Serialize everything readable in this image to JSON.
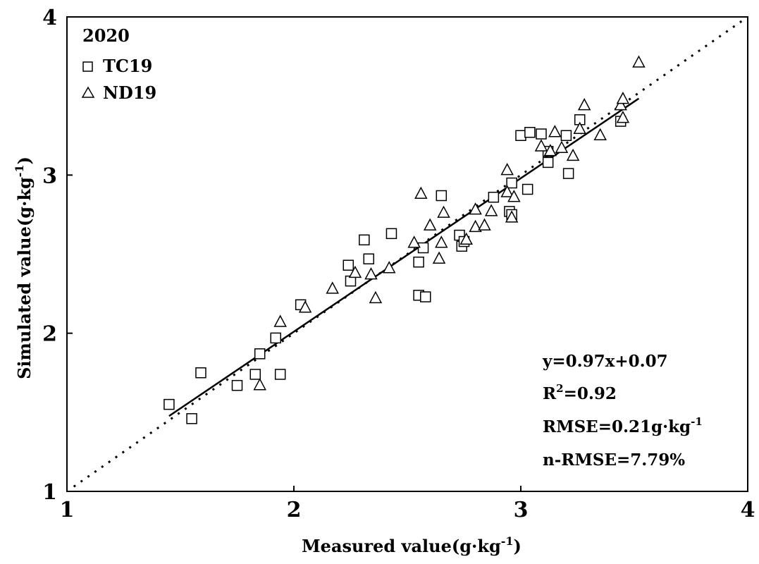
{
  "chart_data": {
    "type": "scatter",
    "title": "",
    "xlabel": "Measured value(g·kg",
    "xlabel_sup": "-1",
    "xlabel_end": ")",
    "ylabel": "Simulated value(g·kg",
    "ylabel_sup": "-1",
    "ylabel_end": ")",
    "xlim": [
      1,
      4
    ],
    "ylim": [
      1,
      4
    ],
    "x_ticks": [
      "1",
      "2",
      "3",
      "4"
    ],
    "y_ticks": [
      "1",
      "2",
      "3",
      "4"
    ],
    "grid": false,
    "legend": {
      "placement": "top-left",
      "title": "2020"
    },
    "series": [
      {
        "name": "TC19",
        "marker": "square",
        "points": [
          [
            1.45,
            1.55
          ],
          [
            1.55,
            1.46
          ],
          [
            1.59,
            1.75
          ],
          [
            1.75,
            1.67
          ],
          [
            1.83,
            1.74
          ],
          [
            1.85,
            1.87
          ],
          [
            1.94,
            1.74
          ],
          [
            1.92,
            1.97
          ],
          [
            2.03,
            2.18
          ],
          [
            2.25,
            2.33
          ],
          [
            2.24,
            2.43
          ],
          [
            2.31,
            2.59
          ],
          [
            2.33,
            2.47
          ],
          [
            2.43,
            2.63
          ],
          [
            2.55,
            2.45
          ],
          [
            2.57,
            2.54
          ],
          [
            2.55,
            2.24
          ],
          [
            2.58,
            2.23
          ],
          [
            2.65,
            2.87
          ],
          [
            2.73,
            2.62
          ],
          [
            2.74,
            2.55
          ],
          [
            2.75,
            2.58
          ],
          [
            2.88,
            2.86
          ],
          [
            2.95,
            2.77
          ],
          [
            2.96,
            2.75
          ],
          [
            2.96,
            2.95
          ],
          [
            3.03,
            2.91
          ],
          [
            3.0,
            3.25
          ],
          [
            3.04,
            3.27
          ],
          [
            3.09,
            3.26
          ],
          [
            3.12,
            3.15
          ],
          [
            3.12,
            3.08
          ],
          [
            3.21,
            3.01
          ],
          [
            3.2,
            3.25
          ],
          [
            3.26,
            3.35
          ],
          [
            3.44,
            3.34
          ]
        ]
      },
      {
        "name": "ND19",
        "marker": "triangle",
        "points": [
          [
            1.85,
            1.67
          ],
          [
            1.94,
            2.07
          ],
          [
            2.05,
            2.16
          ],
          [
            2.17,
            2.28
          ],
          [
            2.27,
            2.38
          ],
          [
            2.34,
            2.37
          ],
          [
            2.36,
            2.22
          ],
          [
            2.42,
            2.41
          ],
          [
            2.53,
            2.57
          ],
          [
            2.56,
            2.88
          ],
          [
            2.6,
            2.68
          ],
          [
            2.64,
            2.47
          ],
          [
            2.65,
            2.57
          ],
          [
            2.66,
            2.76
          ],
          [
            2.76,
            2.59
          ],
          [
            2.8,
            2.67
          ],
          [
            2.8,
            2.78
          ],
          [
            2.84,
            2.68
          ],
          [
            2.87,
            2.77
          ],
          [
            2.94,
            3.03
          ],
          [
            2.94,
            2.89
          ],
          [
            2.96,
            2.73
          ],
          [
            2.97,
            2.86
          ],
          [
            3.09,
            3.18
          ],
          [
            3.13,
            3.15
          ],
          [
            3.15,
            3.27
          ],
          [
            3.18,
            3.17
          ],
          [
            3.23,
            3.12
          ],
          [
            3.26,
            3.29
          ],
          [
            3.28,
            3.44
          ],
          [
            3.35,
            3.25
          ],
          [
            3.44,
            3.44
          ],
          [
            3.45,
            3.48
          ],
          [
            3.45,
            3.36
          ],
          [
            3.52,
            3.71
          ]
        ]
      }
    ],
    "regression": {
      "slope": 0.97,
      "intercept": 0.07,
      "x_range": [
        1.45,
        3.52
      ],
      "style": "solid"
    },
    "reference_line": {
      "slope": 1,
      "intercept": 0,
      "x_range": [
        1.03,
        4
      ],
      "style": "dotted"
    },
    "annotations": {
      "equation": "y=0.97x+0.07",
      "r2_prefix": "R",
      "r2_sup": "2",
      "r2_value": "=0.92",
      "rmse_prefix": "RMSE=0.21g·kg",
      "rmse_sup": "-1",
      "nrmse": "n-RMSE=7.79%"
    }
  }
}
